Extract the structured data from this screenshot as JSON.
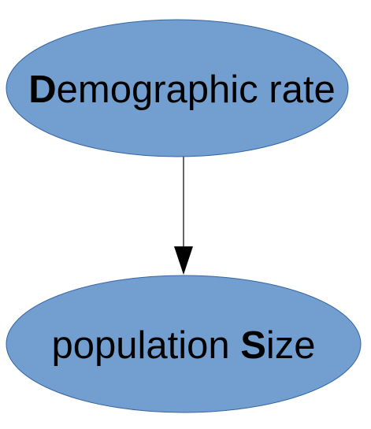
{
  "diagram": {
    "nodes": [
      {
        "id": "demographic-rate",
        "label_parts": [
          {
            "text": "D",
            "bold": true
          },
          {
            "text": "emographic rate",
            "bold": false
          }
        ]
      },
      {
        "id": "population-size",
        "label_parts": [
          {
            "text": "population ",
            "bold": false
          },
          {
            "text": "S",
            "bold": true
          },
          {
            "text": "ize",
            "bold": false
          }
        ]
      }
    ],
    "edges": [
      {
        "from": "demographic-rate",
        "to": "population-size"
      }
    ]
  },
  "colors": {
    "node_fill": "#729fcf",
    "node_stroke": "#3465a4",
    "edge": "#000000",
    "text": "#000000"
  }
}
